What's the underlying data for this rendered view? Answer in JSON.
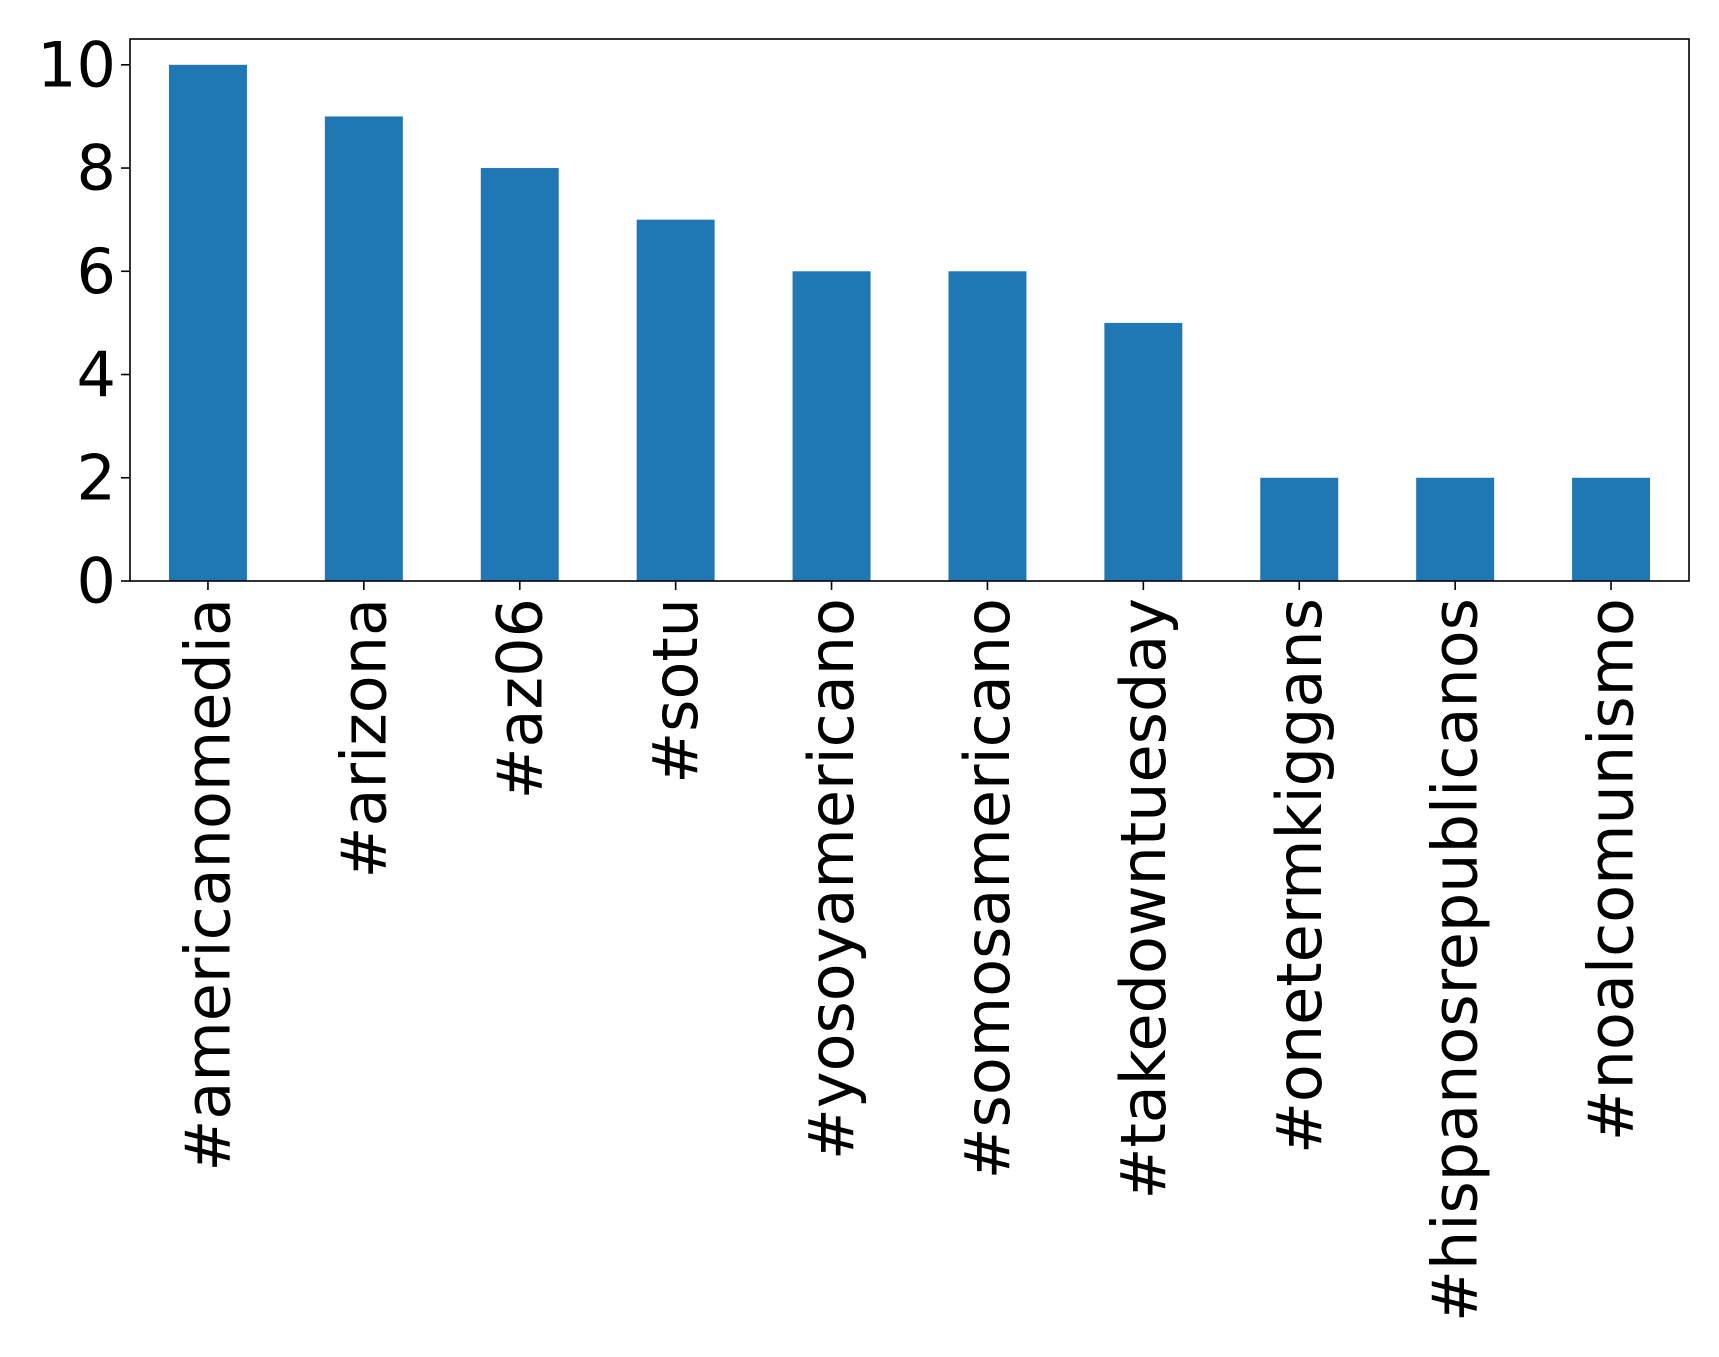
{
  "chart_data": {
    "type": "bar",
    "title": "",
    "xlabel": "",
    "ylabel": "",
    "categories": [
      "#americanomedia",
      "#arizona",
      "#az06",
      "#sotu",
      "#yosoyamericano",
      "#somosamericano",
      "#takedowntuesday",
      "#onetermkiggans",
      "#hispanosrepublicanos",
      "#noalcomunismo"
    ],
    "values": [
      10,
      9,
      8,
      7,
      6,
      6,
      5,
      2,
      2,
      2
    ],
    "yticks": [
      "0",
      "2",
      "4",
      "6",
      "8",
      "10"
    ],
    "ylim": [
      0,
      10.5
    ],
    "bar_color": "#1f77b4",
    "grid": false,
    "legend": "none"
  }
}
